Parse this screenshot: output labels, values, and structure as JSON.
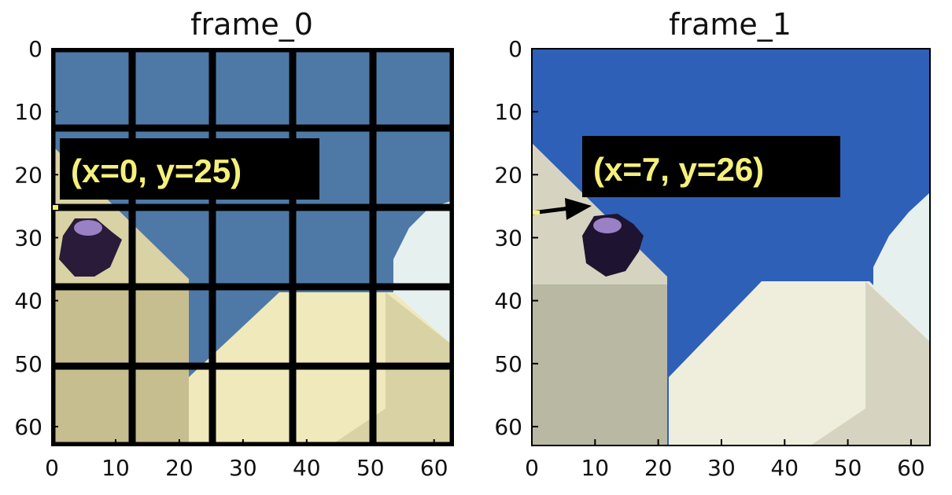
{
  "panels": [
    {
      "title": "frame_0",
      "label": "(x=0, y=25)",
      "tint": "muted",
      "show_grid": true,
      "ball_position": {
        "x": 0,
        "y": 25
      },
      "arrow": false
    },
    {
      "title": "frame_1",
      "label": "(x=7, y=26)",
      "tint": "vivid",
      "show_grid": false,
      "ball_position": {
        "x": 7,
        "y": 26
      },
      "arrow": true
    }
  ],
  "axis": {
    "range": [
      0,
      63
    ],
    "x_ticks": [
      "0",
      "10",
      "20",
      "30",
      "40",
      "50",
      "60"
    ],
    "y_ticks": [
      "0",
      "10",
      "20",
      "30",
      "40",
      "50",
      "60"
    ]
  },
  "colors": {
    "sky_muted": "#4e79a6",
    "sky_vivid": "#2f60b8",
    "ground_muted_light": "#efe9bb",
    "ground_muted_dark": "#c7be90",
    "ground_vivid_light": "#efeedd",
    "ground_vivid_dark": "#b9b8a2",
    "slope_muted": "#d9d2a4",
    "slope_vivid": "#d6d4c0",
    "ball": "#2a1b3a",
    "ball_highlight": "#9a80c4",
    "label_bg": "#000000",
    "label_fg": "#f5f07a",
    "grid": "#000000",
    "snow": "#e6f1ef"
  }
}
